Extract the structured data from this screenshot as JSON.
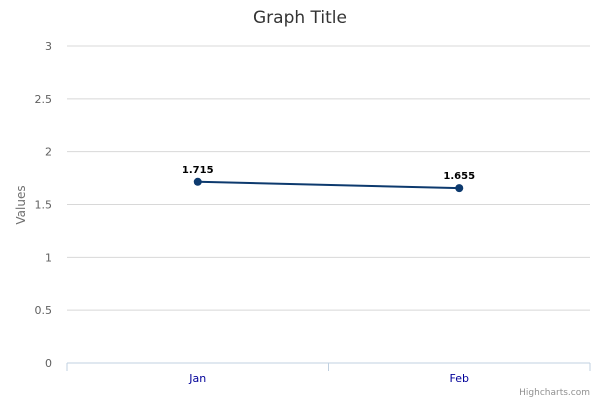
{
  "chart_data": {
    "type": "line",
    "title": "Graph Title",
    "ylabel": "Values",
    "xlabel": "",
    "categories": [
      "Jan",
      "Feb"
    ],
    "series": [
      {
        "values": [
          1.715,
          1.655
        ],
        "color": "#0d3a6e"
      }
    ],
    "ylim": [
      0,
      3
    ],
    "yticks": [
      "0",
      "0.5",
      "1",
      "1.5",
      "2",
      "2.5",
      "3"
    ],
    "grid": true,
    "legend": "none",
    "data_labels": [
      "1.715",
      "1.655"
    ]
  },
  "credits": "Highcharts.com"
}
